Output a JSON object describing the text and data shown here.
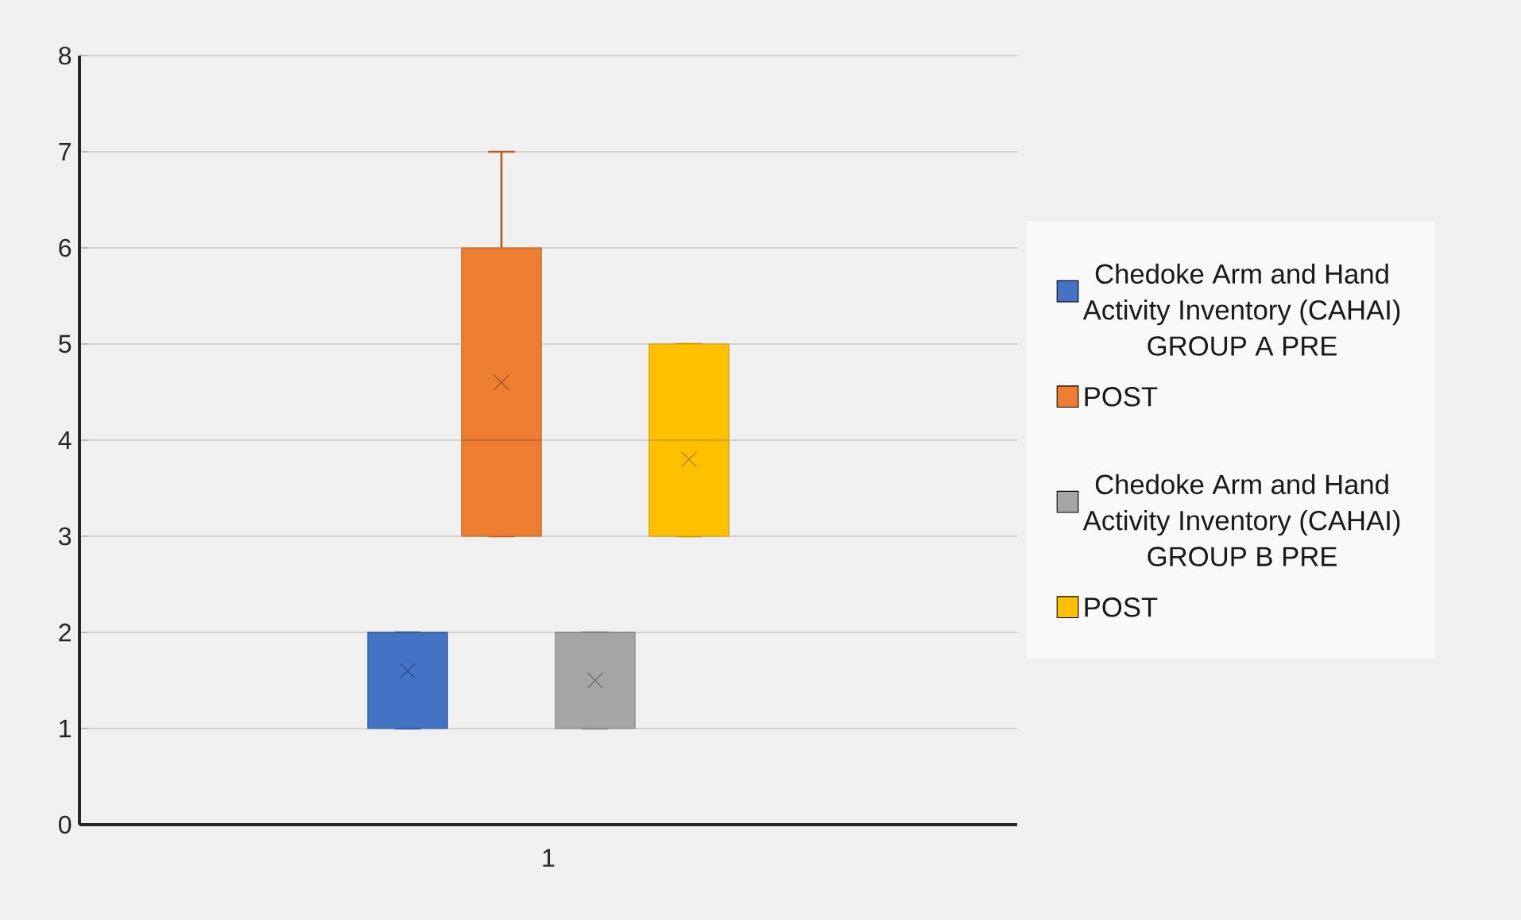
{
  "chart_data": {
    "type": "box",
    "categories": [
      "1"
    ],
    "ylim": [
      0,
      8
    ],
    "yticks": [
      0,
      1,
      2,
      3,
      4,
      5,
      6,
      7,
      8
    ],
    "grid": "y",
    "legend": "right",
    "series": [
      {
        "name": "Chedoke Arm and Hand Activity Inventory (CAHAI) GROUP A PRE",
        "color": "#4472c4",
        "boxes": [
          {
            "low": 1,
            "q1": 1,
            "median": 2,
            "q3": 2,
            "high": 2,
            "mean": 1.6
          }
        ]
      },
      {
        "name": "POST",
        "color": "#ed7d31",
        "boxes": [
          {
            "low": 3,
            "q1": 3,
            "median": 4,
            "q3": 6,
            "high": 7,
            "mean": 4.6
          }
        ]
      },
      {
        "name": "Chedoke Arm and Hand Activity Inventory (CAHAI) GROUP B PRE",
        "color": "#a5a5a5",
        "boxes": [
          {
            "low": 1,
            "q1": 1,
            "median": 2,
            "q3": 2,
            "high": 2,
            "mean": 1.5
          }
        ]
      },
      {
        "name": "POST",
        "color": "#ffc000",
        "boxes": [
          {
            "low": 3,
            "q1": 3,
            "median": 4,
            "q3": 5,
            "high": 5,
            "mean": 3.8
          }
        ]
      }
    ]
  }
}
